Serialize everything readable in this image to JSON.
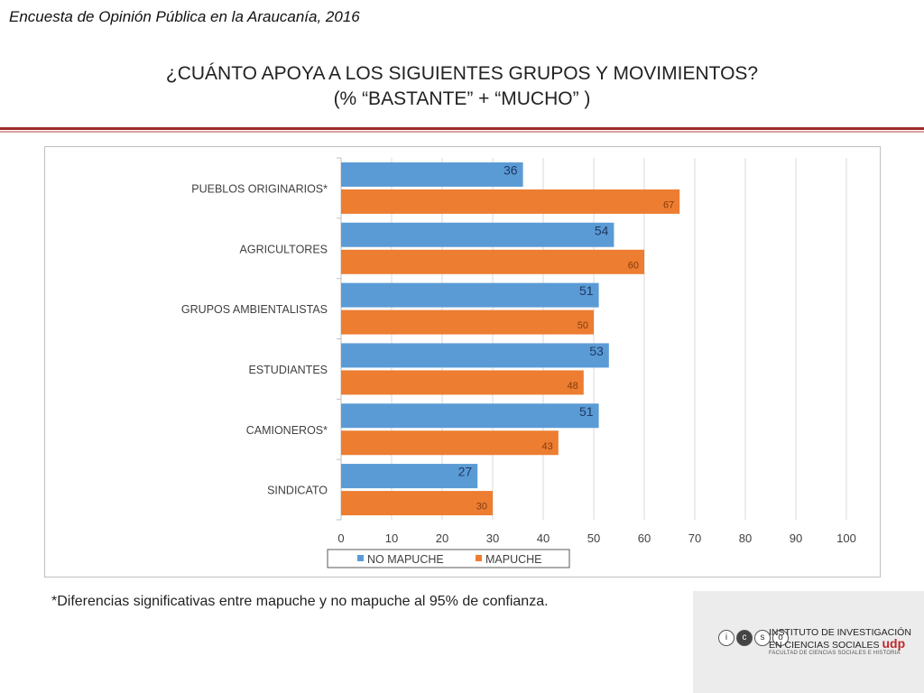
{
  "header": {
    "survey_title": "Encuesta de Opinión Pública en la Araucanía, 2016",
    "question_line1": "¿CUÁNTO APOYA A LOS SIGUIENTES GRUPOS Y MOVIMIENTOS?",
    "question_line2": "(% “BASTANTE” + “MUCHO” )"
  },
  "footnote": "*Diferencias significativas entre mapuche y no mapuche al 95% de confianza.",
  "logo": {
    "letters": [
      "i",
      "c",
      "s",
      "o"
    ],
    "line1": "INSTITUTO DE INVESTIGACIÓN",
    "line2": "EN CIENCIAS SOCIALES",
    "brand": "udp",
    "line3": "FACULTAD DE CIENCIAS SOCIALES E HISTORIA"
  },
  "colors": {
    "no_mapuche": "#5b9bd5",
    "mapuche": "#ed7d31",
    "accent": "#9e2b2b"
  },
  "chart_data": {
    "type": "bar",
    "orientation": "horizontal",
    "categories": [
      "PUEBLOS ORIGINARIOS*",
      "AGRICULTORES",
      "GRUPOS AMBIENTALISTAS",
      "ESTUDIANTES",
      "CAMIONEROS*",
      "SINDICATO"
    ],
    "series": [
      {
        "name": "NO MAPUCHE",
        "values": [
          36,
          54,
          51,
          53,
          51,
          27
        ]
      },
      {
        "name": "MAPUCHE",
        "values": [
          67,
          60,
          50,
          48,
          43,
          30
        ]
      }
    ],
    "xlim": [
      0,
      100
    ],
    "xticks": [
      0,
      10,
      20,
      30,
      40,
      50,
      60,
      70,
      80,
      90,
      100
    ],
    "grid": true,
    "legend_position": "bottom",
    "data_labels": true
  }
}
